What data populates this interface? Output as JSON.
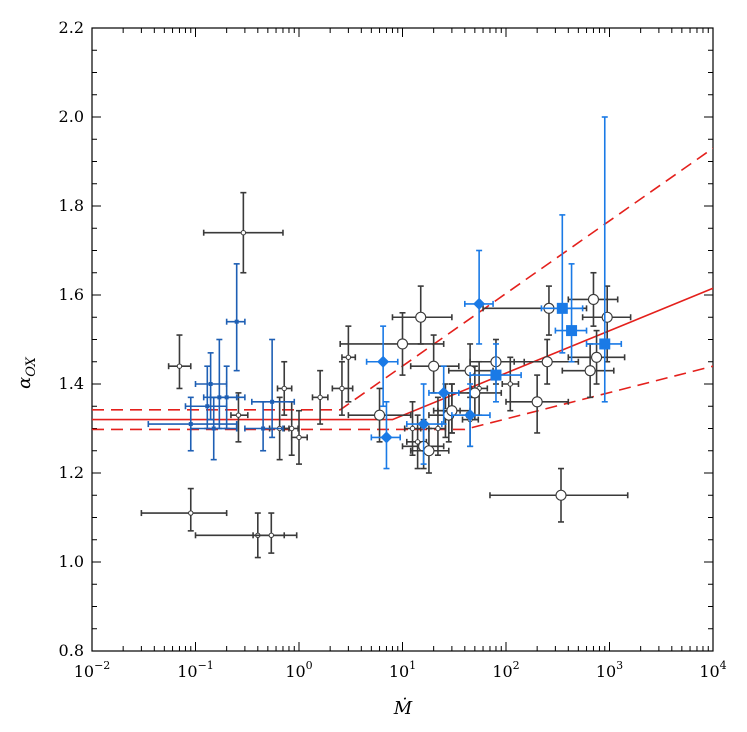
{
  "chart_data": {
    "type": "scatter",
    "title": "",
    "xlabel": "Ṁ",
    "ylabel": "α_OX",
    "xscale": "log",
    "xlim": [
      0.01,
      10000
    ],
    "ylim": [
      0.8,
      2.2
    ],
    "grid": false,
    "legend": "none",
    "x_ticks": [
      {
        "value": 0.01,
        "mant": "10",
        "exp": "−2"
      },
      {
        "value": 0.1,
        "mant": "10",
        "exp": "−1"
      },
      {
        "value": 1,
        "mant": "10",
        "exp": "0"
      },
      {
        "value": 10,
        "mant": "10",
        "exp": "1"
      },
      {
        "value": 100,
        "mant": "10",
        "exp": "2"
      },
      {
        "value": 1000,
        "mant": "10",
        "exp": "3"
      },
      {
        "value": 10000,
        "mant": "10",
        "exp": "4"
      }
    ],
    "y_ticks": [
      "0.8",
      "1.0",
      "1.2",
      "1.4",
      "1.6",
      "1.8",
      "2.0",
      "2.2"
    ],
    "series": [
      {
        "marker": "dot",
        "color": "#3a3a3a",
        "points": [
          {
            "x": 0.07,
            "y": 1.44,
            "xlo": 0.055,
            "xhi": 0.09,
            "ylo": 1.39,
            "yhi": 1.51
          },
          {
            "x": 0.09,
            "y": 1.11,
            "xlo": 0.03,
            "xhi": 0.2,
            "ylo": 1.07,
            "yhi": 1.165
          },
          {
            "x": 0.26,
            "y": 1.33,
            "xlo": 0.22,
            "xhi": 0.32,
            "ylo": 1.27,
            "yhi": 1.38
          },
          {
            "x": 0.29,
            "y": 1.74,
            "xlo": 0.12,
            "xhi": 0.7,
            "ylo": 1.65,
            "yhi": 1.83
          },
          {
            "x": 0.4,
            "y": 1.06,
            "xlo": 0.1,
            "xhi": 0.72,
            "ylo": 1.01,
            "yhi": 1.11
          },
          {
            "x": 0.54,
            "y": 1.06,
            "xlo": 0.36,
            "xhi": 0.95,
            "ylo": 1.02,
            "yhi": 1.11
          },
          {
            "x": 0.65,
            "y": 1.3,
            "xlo": 0.52,
            "xhi": 0.8,
            "ylo": 1.23,
            "yhi": 1.37
          },
          {
            "x": 0.72,
            "y": 1.39,
            "xlo": 0.62,
            "xhi": 0.85,
            "ylo": 1.33,
            "yhi": 1.45
          },
          {
            "x": 0.85,
            "y": 1.3,
            "xlo": 0.72,
            "xhi": 0.98,
            "ylo": 1.24,
            "yhi": 1.36
          },
          {
            "x": 1.0,
            "y": 1.28,
            "xlo": 0.85,
            "xhi": 1.2,
            "ylo": 1.22,
            "yhi": 1.34
          },
          {
            "x": 1.6,
            "y": 1.37,
            "xlo": 1.35,
            "xhi": 1.9,
            "ylo": 1.31,
            "yhi": 1.43
          },
          {
            "x": 2.6,
            "y": 1.39,
            "xlo": 2.1,
            "xhi": 3.3,
            "ylo": 1.33,
            "yhi": 1.45
          },
          {
            "x": 3.0,
            "y": 1.46,
            "xlo": 2.6,
            "xhi": 3.5,
            "ylo": 1.36,
            "yhi": 1.53
          },
          {
            "x": 12.5,
            "y": 1.3,
            "xlo": 10.5,
            "xhi": 15,
            "ylo": 1.24,
            "yhi": 1.36
          },
          {
            "x": 14,
            "y": 1.27,
            "xlo": 11,
            "xhi": 17,
            "ylo": 1.21,
            "yhi": 1.33
          },
          {
            "x": 22,
            "y": 1.3,
            "xlo": 18,
            "xhi": 26,
            "ylo": 1.24,
            "yhi": 1.37
          },
          {
            "x": 26,
            "y": 1.34,
            "xlo": 22,
            "xhi": 31,
            "ylo": 1.28,
            "yhi": 1.4
          },
          {
            "x": 30,
            "y": 1.34,
            "xlo": 25,
            "xhi": 36,
            "ylo": 1.29,
            "yhi": 1.4
          },
          {
            "x": 45,
            "y": 1.32,
            "xlo": 38,
            "xhi": 54,
            "ylo": 1.26,
            "yhi": 1.38
          },
          {
            "x": 55,
            "y": 1.39,
            "xlo": 46,
            "xhi": 66,
            "ylo": 1.33,
            "yhi": 1.45
          },
          {
            "x": 110,
            "y": 1.4,
            "xlo": 92,
            "xhi": 132,
            "ylo": 1.34,
            "yhi": 1.46
          }
        ]
      },
      {
        "marker": "open-circle",
        "color": "#3a3a3a",
        "points": [
          {
            "x": 6,
            "y": 1.33,
            "xlo": 3,
            "xhi": 12,
            "ylo": 1.27,
            "yhi": 1.39
          },
          {
            "x": 10,
            "y": 1.49,
            "xlo": 2.5,
            "xhi": 25,
            "ylo": 1.42,
            "yhi": 1.56
          },
          {
            "x": 15,
            "y": 1.55,
            "xlo": 8,
            "xhi": 30,
            "ylo": 1.49,
            "yhi": 1.62
          },
          {
            "x": 16,
            "y": 1.26,
            "xlo": 10,
            "xhi": 25,
            "ylo": 1.21,
            "yhi": 1.32
          },
          {
            "x": 18,
            "y": 1.25,
            "xlo": 12,
            "xhi": 28,
            "ylo": 1.2,
            "yhi": 1.3
          },
          {
            "x": 20,
            "y": 1.44,
            "xlo": 12,
            "xhi": 35,
            "ylo": 1.38,
            "yhi": 1.51
          },
          {
            "x": 28,
            "y": 1.33,
            "xlo": 18,
            "xhi": 42,
            "ylo": 1.27,
            "yhi": 1.38
          },
          {
            "x": 30,
            "y": 1.34,
            "xlo": 20,
            "xhi": 45,
            "ylo": 1.29,
            "yhi": 1.4
          },
          {
            "x": 45,
            "y": 1.43,
            "xlo": 28,
            "xhi": 75,
            "ylo": 1.37,
            "yhi": 1.49
          },
          {
            "x": 50,
            "y": 1.38,
            "xlo": 30,
            "xhi": 90,
            "ylo": 1.32,
            "yhi": 1.44
          },
          {
            "x": 80,
            "y": 1.45,
            "xlo": 45,
            "xhi": 150,
            "ylo": 1.4,
            "yhi": 1.5
          },
          {
            "x": 200,
            "y": 1.36,
            "xlo": 100,
            "xhi": 400,
            "ylo": 1.29,
            "yhi": 1.42
          },
          {
            "x": 250,
            "y": 1.45,
            "xlo": 120,
            "xhi": 500,
            "ylo": 1.4,
            "yhi": 1.5
          },
          {
            "x": 260,
            "y": 1.57,
            "xlo": 60,
            "xhi": 600,
            "ylo": 1.51,
            "yhi": 1.62
          },
          {
            "x": 340,
            "y": 1.15,
            "xlo": 70,
            "xhi": 1500,
            "ylo": 1.09,
            "yhi": 1.21
          },
          {
            "x": 650,
            "y": 1.43,
            "xlo": 350,
            "xhi": 1100,
            "ylo": 1.37,
            "yhi": 1.49
          },
          {
            "x": 700,
            "y": 1.59,
            "xlo": 400,
            "xhi": 1200,
            "ylo": 1.53,
            "yhi": 1.65
          },
          {
            "x": 750,
            "y": 1.46,
            "xlo": 400,
            "xhi": 1400,
            "ylo": 1.4,
            "yhi": 1.52
          },
          {
            "x": 950,
            "y": 1.55,
            "xlo": 550,
            "xhi": 1600,
            "ylo": 1.45,
            "yhi": 1.62
          }
        ]
      },
      {
        "marker": "small-square",
        "color": "#1e5fb4",
        "points": [
          {
            "x": 0.09,
            "y": 1.31,
            "xlo": 0.035,
            "xhi": 0.25,
            "ylo": 1.25,
            "yhi": 1.37
          },
          {
            "x": 0.13,
            "y": 1.35,
            "xlo": 0.08,
            "xhi": 0.2,
            "ylo": 1.3,
            "yhi": 1.44
          },
          {
            "x": 0.14,
            "y": 1.4,
            "xlo": 0.1,
            "xhi": 0.2,
            "ylo": 1.32,
            "yhi": 1.47
          },
          {
            "x": 0.15,
            "y": 1.3,
            "xlo": 0.09,
            "xhi": 0.25,
            "ylo": 1.23,
            "yhi": 1.37
          },
          {
            "x": 0.17,
            "y": 1.37,
            "xlo": 0.12,
            "xhi": 0.25,
            "ylo": 1.3,
            "yhi": 1.5
          },
          {
            "x": 0.2,
            "y": 1.37,
            "xlo": 0.14,
            "xhi": 0.3,
            "ylo": 1.3,
            "yhi": 1.44
          },
          {
            "x": 0.25,
            "y": 1.54,
            "xlo": 0.2,
            "xhi": 0.3,
            "ylo": 1.43,
            "yhi": 1.67
          },
          {
            "x": 0.45,
            "y": 1.3,
            "xlo": 0.3,
            "xhi": 0.7,
            "ylo": 1.25,
            "yhi": 1.36
          },
          {
            "x": 0.55,
            "y": 1.36,
            "xlo": 0.35,
            "xhi": 0.9,
            "ylo": 1.28,
            "yhi": 1.5
          }
        ]
      },
      {
        "marker": "diamond",
        "color": "#1a7ae6",
        "points": [
          {
            "x": 6.5,
            "y": 1.45,
            "xlo": 4.5,
            "xhi": 9,
            "ylo": 1.35,
            "yhi": 1.53
          },
          {
            "x": 7,
            "y": 1.28,
            "xlo": 5,
            "xhi": 9.5,
            "ylo": 1.21,
            "yhi": 1.36
          },
          {
            "x": 16,
            "y": 1.31,
            "xlo": 11,
            "xhi": 24,
            "ylo": 1.22,
            "yhi": 1.4
          },
          {
            "x": 25,
            "y": 1.38,
            "xlo": 18,
            "xhi": 35,
            "ylo": 1.31,
            "yhi": 1.44
          },
          {
            "x": 45,
            "y": 1.33,
            "xlo": 30,
            "xhi": 70,
            "ylo": 1.26,
            "yhi": 1.4
          },
          {
            "x": 55,
            "y": 1.58,
            "xlo": 40,
            "xhi": 75,
            "ylo": 1.49,
            "yhi": 1.7
          }
        ]
      },
      {
        "marker": "square",
        "color": "#1a7ae6",
        "points": [
          {
            "x": 80,
            "y": 1.42,
            "xlo": 45,
            "xhi": 140,
            "ylo": 1.36,
            "yhi": 1.49
          },
          {
            "x": 350,
            "y": 1.57,
            "xlo": 220,
            "xhi": 550,
            "ylo": 1.47,
            "yhi": 1.78
          },
          {
            "x": 430,
            "y": 1.52,
            "xlo": 300,
            "xhi": 600,
            "ylo": 1.45,
            "yhi": 1.67
          },
          {
            "x": 900,
            "y": 1.49,
            "xlo": 600,
            "xhi": 1300,
            "ylo": 1.36,
            "yhi": 2.0
          }
        ]
      }
    ],
    "fit": {
      "color": "#e4201c",
      "solid": [
        [
          0.01,
          1.32
        ],
        [
          8,
          1.32
        ],
        [
          10000,
          1.615
        ]
      ],
      "dashed_upper": [
        [
          0.01,
          1.342
        ],
        [
          2.5,
          1.342
        ],
        [
          10000,
          1.93
        ]
      ],
      "dashed_lower": [
        [
          0.01,
          1.298
        ],
        [
          40,
          1.298
        ],
        [
          10000,
          1.44
        ]
      ]
    }
  }
}
